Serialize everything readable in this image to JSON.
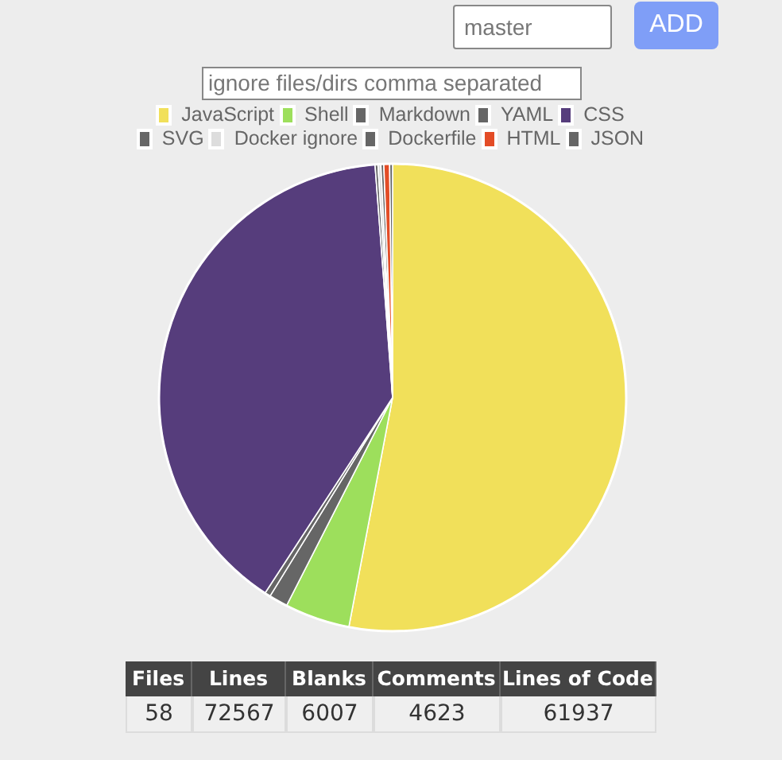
{
  "chart_data": {
    "type": "pie",
    "categories": [
      "JavaScript",
      "Shell",
      "Markdown",
      "YAML",
      "CSS",
      "SVG",
      "Docker ignore",
      "Dockerfile",
      "HTML",
      "JSON"
    ],
    "values": [
      53.0,
      4.5,
      1.3,
      0.4,
      39.6,
      0.2,
      0.2,
      0.2,
      0.4,
      0.2
    ],
    "colors": [
      "#f1e05a",
      "#9ddf5c",
      "#666666",
      "#666666",
      "#563d7c",
      "#666666",
      "#dddddd",
      "#666666",
      "#e34c26",
      "#666666"
    ],
    "legend": "top",
    "annotations": [
      "master",
      "ADD",
      "ignore files/dirs comma separated",
      "Files",
      "Lines",
      "Blanks",
      "Comments",
      "Lines of Code",
      "58",
      "72567",
      "6007",
      "4623",
      "61937"
    ]
  }
}
